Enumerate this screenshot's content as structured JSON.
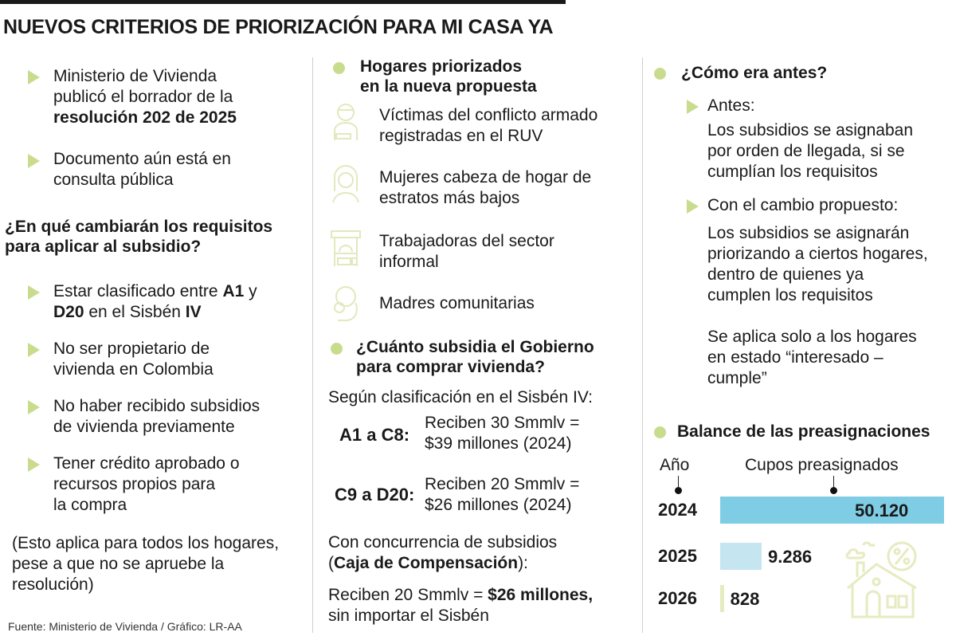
{
  "title": "NUEVOS CRITERIOS DE PRIORIZACIÓN PARA MI CASA YA",
  "colors": {
    "accent_green": "#c9dc8e",
    "bar_2024": "#7ecde4",
    "bar_2025": "#c5e6f0",
    "bar_2026": "#e6ebc0",
    "icon_color": "#e3e8bd"
  },
  "col1": {
    "intro": [
      [
        [
          "Ministerio de Vivienda\npublicó el borrador de la\n",
          false
        ],
        [
          "resolución 202 de 2025",
          true
        ]
      ],
      [
        [
          "Documento aún está en\nconsulta pública",
          false
        ]
      ]
    ],
    "heading": "¿En qué cambiarán los requisitos\npara aplicar al subsidio?",
    "requirements": [
      [
        [
          "Estar clasificado entre ",
          false
        ],
        [
          "A1",
          true
        ],
        [
          " y\n",
          false
        ],
        [
          "D20",
          true
        ],
        [
          " en el Sisbén ",
          false
        ],
        [
          "IV",
          true
        ]
      ],
      [
        [
          "No ser propietario de\nvivienda en Colombia",
          false
        ]
      ],
      [
        [
          "No haber recibido subsidios\nde vivienda previamente",
          false
        ]
      ],
      [
        [
          "Tener crédito aprobado o\nrecursos propios para\nla compra",
          false
        ]
      ]
    ],
    "note": "(Esto aplica para todos los hogares,\npese a que no se apruebe la\nresolución)",
    "source": "Fuente: Ministerio de Vivienda / Gráfico: LR-AA"
  },
  "col2": {
    "heading": "Hogares priorizados\nen la nueva propuesta",
    "households": [
      {
        "icon": "injured-person-icon",
        "label": "Víctimas del conflicto armado\nregistradas en el RUV"
      },
      {
        "icon": "woman-icon",
        "label": "Mujeres cabeza de hogar de\nestratos más bajos"
      },
      {
        "icon": "market-stall-icon",
        "label": "Trabajadoras del sector\ninformal"
      },
      {
        "icon": "mother-child-icon",
        "label": "Madres comunitarias"
      }
    ],
    "subsidy_heading": "¿Cuánto subsidia el Gobierno\npara comprar vivienda?",
    "subsidy_intro": "Según clasificación en el Sisbén IV:",
    "tiers": [
      {
        "range": "A1 a C8:",
        "detail": "Reciben 30 Smmlv =\n$39 millones (2024)"
      },
      {
        "range": "C9 a D20:",
        "detail": "Reciben 20 Smmlv =\n$26 millones (2024)"
      }
    ],
    "concurrence": [
      [
        "Con concurrencia de subsidios\n(",
        false
      ],
      [
        "Caja de Compensación",
        true
      ],
      [
        "):",
        false
      ]
    ],
    "concurrence_detail": [
      [
        "Reciben 20 Smmlv = ",
        false
      ],
      [
        "$26 millones,",
        true
      ],
      [
        "\nsin importar el Sisbén",
        false
      ]
    ]
  },
  "col3": {
    "heading": "¿Cómo era antes?",
    "before_label": "Antes:",
    "before_text": "Los subsidios se asignaban\npor orden de llegada, si se\ncumplían los requisitos",
    "change_label": "Con el cambio propuesto:",
    "change_text": "Los subsidios se asignarán\npriorizando a ciertos hogares,\ndentro de quienes ya\ncumplen los requisitos",
    "scope_text": "Se aplica solo a los hogares\nen estado “interesado –\ncumple”",
    "balance_heading": "Balance de las preasignaciones"
  },
  "chart_data": {
    "type": "bar",
    "orientation": "horizontal",
    "xlabel": "Cupos preasignados",
    "ylabel": "Año",
    "categories": [
      "2024",
      "2025",
      "2026"
    ],
    "values": [
      50120,
      9286,
      828
    ],
    "data_labels": [
      "50.120",
      "9.286",
      "828"
    ],
    "colors": [
      "#7ecde4",
      "#c5e6f0",
      "#e6ebc0"
    ]
  }
}
